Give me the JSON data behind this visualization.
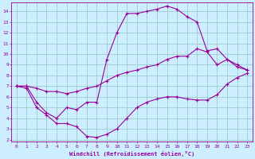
{
  "xlabel": "Windchill (Refroidissement éolien,°C)",
  "x_ticks": [
    0,
    1,
    2,
    3,
    4,
    5,
    6,
    7,
    8,
    9,
    10,
    11,
    12,
    13,
    14,
    15,
    16,
    17,
    18,
    19,
    20,
    21,
    22,
    23
  ],
  "ylim": [
    1.8,
    14.8
  ],
  "xlim": [
    -0.5,
    23.5
  ],
  "yticks": [
    2,
    3,
    4,
    5,
    6,
    7,
    8,
    9,
    10,
    11,
    12,
    13,
    14
  ],
  "bg_color": "#cceeff",
  "grid_color": "#99cccc",
  "line_color": "#990099",
  "line1_x": [
    0,
    1,
    2,
    3,
    4,
    5,
    6,
    7,
    8,
    9,
    10,
    11,
    12,
    13,
    14,
    15,
    16,
    17,
    18,
    19,
    20,
    21,
    22,
    23
  ],
  "line1_y": [
    7.0,
    6.8,
    5.0,
    4.3,
    3.5,
    3.5,
    3.2,
    2.3,
    2.2,
    2.5,
    3.0,
    4.0,
    5.0,
    5.5,
    5.8,
    6.0,
    6.0,
    5.8,
    5.7,
    5.7,
    6.2,
    7.2,
    7.8,
    8.2
  ],
  "line2_x": [
    0,
    1,
    2,
    3,
    4,
    5,
    6,
    7,
    8,
    9,
    10,
    11,
    12,
    13,
    14,
    15,
    16,
    17,
    18,
    19,
    20,
    21,
    22,
    23
  ],
  "line2_y": [
    7.0,
    7.0,
    5.5,
    4.5,
    4.0,
    5.0,
    4.8,
    5.5,
    5.5,
    9.5,
    12.0,
    13.8,
    13.8,
    14.0,
    14.2,
    14.5,
    14.2,
    13.5,
    13.0,
    10.3,
    10.5,
    9.5,
    9.0,
    8.5
  ],
  "line3_x": [
    0,
    1,
    2,
    3,
    4,
    5,
    6,
    7,
    8,
    9,
    10,
    11,
    12,
    13,
    14,
    15,
    16,
    17,
    18,
    19,
    20,
    21,
    22,
    23
  ],
  "line3_y": [
    7.0,
    7.0,
    6.8,
    6.5,
    6.5,
    6.3,
    6.5,
    6.8,
    7.0,
    7.5,
    8.0,
    8.3,
    8.5,
    8.8,
    9.0,
    9.5,
    9.8,
    9.8,
    10.5,
    10.2,
    9.0,
    9.5,
    8.8,
    8.5
  ]
}
